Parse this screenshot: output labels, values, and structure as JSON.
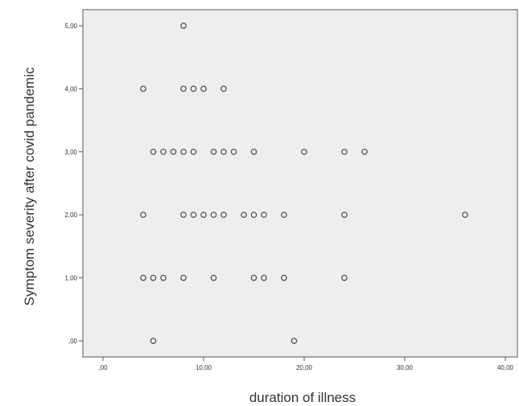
{
  "colors": {
    "plot_background": "#eeeeee",
    "plot_border": "#555555",
    "marker_stroke": "#555555",
    "text": "#333333"
  },
  "chart_data": {
    "type": "scatter",
    "title": "",
    "xlabel": "duration of illness",
    "ylabel": "Symptom severity after covid pandemic",
    "xlim": [
      0,
      40
    ],
    "ylim": [
      0,
      5
    ],
    "x_ticks": [
      0,
      10,
      20,
      30,
      40
    ],
    "x_tick_labels": [
      ",00",
      "10,00",
      "20,00",
      "30,00",
      "40,00"
    ],
    "y_ticks": [
      0,
      1,
      2,
      3,
      4,
      5
    ],
    "y_tick_labels": [
      ",00",
      "1,00",
      "2,00",
      "3,00",
      "4,00",
      "5,00"
    ],
    "grid": false,
    "legend": "none",
    "marker": "hollow-circle",
    "points": [
      {
        "x": 8,
        "y": 5
      },
      {
        "x": 4,
        "y": 4
      },
      {
        "x": 8,
        "y": 4
      },
      {
        "x": 9,
        "y": 4
      },
      {
        "x": 10,
        "y": 4
      },
      {
        "x": 12,
        "y": 4
      },
      {
        "x": 5,
        "y": 3
      },
      {
        "x": 6,
        "y": 3
      },
      {
        "x": 7,
        "y": 3
      },
      {
        "x": 8,
        "y": 3
      },
      {
        "x": 9,
        "y": 3
      },
      {
        "x": 11,
        "y": 3
      },
      {
        "x": 12,
        "y": 3
      },
      {
        "x": 13,
        "y": 3
      },
      {
        "x": 15,
        "y": 3
      },
      {
        "x": 20,
        "y": 3
      },
      {
        "x": 24,
        "y": 3
      },
      {
        "x": 26,
        "y": 3
      },
      {
        "x": 4,
        "y": 2
      },
      {
        "x": 8,
        "y": 2
      },
      {
        "x": 9,
        "y": 2
      },
      {
        "x": 10,
        "y": 2
      },
      {
        "x": 11,
        "y": 2
      },
      {
        "x": 12,
        "y": 2
      },
      {
        "x": 14,
        "y": 2
      },
      {
        "x": 15,
        "y": 2
      },
      {
        "x": 16,
        "y": 2
      },
      {
        "x": 18,
        "y": 2
      },
      {
        "x": 24,
        "y": 2
      },
      {
        "x": 36,
        "y": 2
      },
      {
        "x": 4,
        "y": 1
      },
      {
        "x": 5,
        "y": 1
      },
      {
        "x": 6,
        "y": 1
      },
      {
        "x": 8,
        "y": 1
      },
      {
        "x": 11,
        "y": 1
      },
      {
        "x": 15,
        "y": 1
      },
      {
        "x": 16,
        "y": 1
      },
      {
        "x": 18,
        "y": 1
      },
      {
        "x": 24,
        "y": 1
      },
      {
        "x": 5,
        "y": 0
      },
      {
        "x": 19,
        "y": 0
      }
    ]
  }
}
